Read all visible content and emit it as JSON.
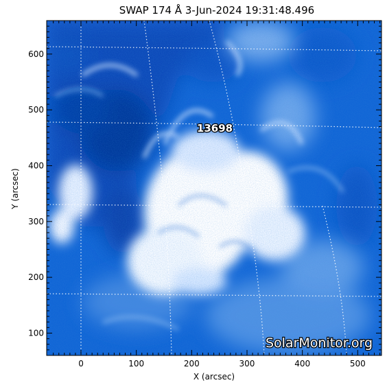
{
  "title": "SWAP 174 Å  3-Jun-2024 19:31:48.496",
  "x_axis": {
    "label": "X (arcsec)",
    "ticks": [
      "0",
      "100",
      "200",
      "300",
      "400",
      "500"
    ],
    "range": [
      -62,
      543
    ]
  },
  "y_axis": {
    "label": "Y (arcsec)",
    "ticks": [
      "100",
      "200",
      "300",
      "400",
      "500",
      "600"
    ],
    "range": [
      60,
      660
    ]
  },
  "region_label": "13698",
  "watermark": "SolarMonitor.org",
  "colors": {
    "background_blue": "#0a5fd0",
    "dark_blue": "#033a9a",
    "bright": "#ffffff",
    "axis": "#000000"
  }
}
